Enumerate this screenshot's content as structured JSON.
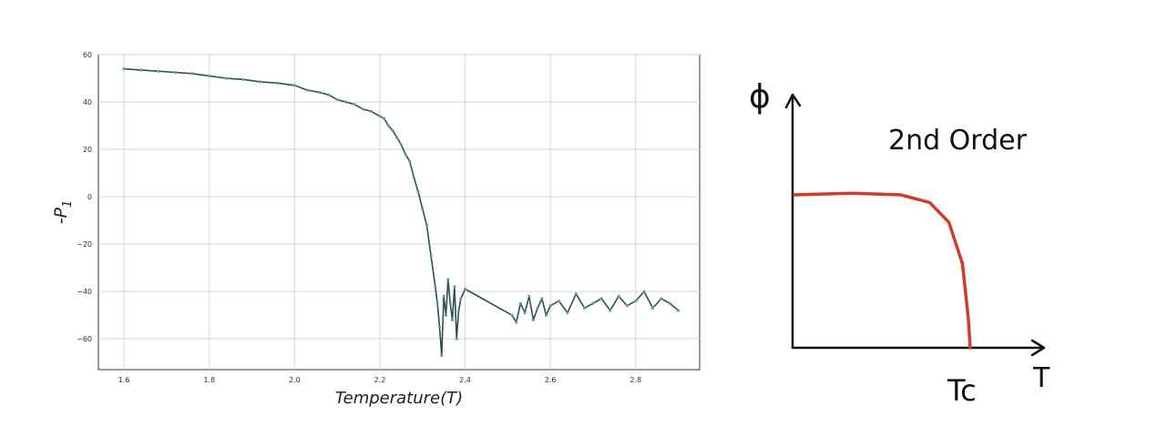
{
  "chart_data": [
    {
      "type": "line",
      "xlabel": "Temperature(T)",
      "ylabel": "-P",
      "ylabel_subscript": "1",
      "xlim": [
        1.54,
        2.95
      ],
      "ylim": [
        -73,
        60
      ],
      "xticks": [
        1.6,
        1.8,
        2.0,
        2.2,
        2.4,
        2.6,
        2.8
      ],
      "xtick_labels": [
        "1.6",
        "1.8",
        "2.0",
        "2.2",
        "2.4",
        "2.6",
        "2.8"
      ],
      "yticks": [
        60,
        40,
        20,
        0,
        -20,
        -40,
        -60
      ],
      "ytick_labels": [
        "60",
        "40",
        "20",
        "0",
        "−20",
        "−40",
        "−60"
      ],
      "grid": true,
      "line_color": "#2f4f4f",
      "marker_color": "#5f9ea0",
      "series": [
        {
          "x": [
            1.6,
            1.64,
            1.68,
            1.72,
            1.76,
            1.8,
            1.84,
            1.88,
            1.92,
            1.96,
            2.0,
            2.03,
            2.06,
            2.08,
            2.1,
            2.12,
            2.14,
            2.16,
            2.18,
            2.2,
            2.21,
            2.22,
            2.23,
            2.24,
            2.25,
            2.26,
            2.27,
            2.28,
            2.29,
            2.3,
            2.31,
            2.32,
            2.33,
            2.335,
            2.34,
            2.345,
            2.35,
            2.355,
            2.36,
            2.365,
            2.37,
            2.375,
            2.38,
            2.385,
            2.39,
            2.4,
            2.51,
            2.52,
            2.53,
            2.54,
            2.55,
            2.56,
            2.57,
            2.58,
            2.59,
            2.6,
            2.62,
            2.64,
            2.66,
            2.68,
            2.7,
            2.72,
            2.74,
            2.76,
            2.78,
            2.8,
            2.82,
            2.84,
            2.86,
            2.88,
            2.9
          ],
          "y": [
            54,
            53.5,
            53,
            52.5,
            52,
            51,
            50,
            49.5,
            48.5,
            48,
            47,
            45,
            44,
            43,
            41,
            40,
            39,
            37,
            36,
            34,
            33,
            30,
            28,
            25,
            22,
            18,
            15,
            8,
            2,
            -5,
            -12,
            -25,
            -38,
            -45,
            -55,
            -67,
            -42,
            -50,
            -35,
            -45,
            -52,
            -38,
            -60,
            -48,
            -43,
            -39,
            -50,
            -53,
            -45,
            -49,
            -42,
            -52,
            -47,
            -43,
            -50,
            -46,
            -44,
            -49,
            -41,
            -47,
            -45,
            -43,
            -48,
            -42,
            -46,
            -44,
            -40,
            -47,
            -43,
            -45,
            -48
          ]
        }
      ]
    },
    {
      "type": "line",
      "xlabel": "T",
      "ylabel": "ϕ",
      "title": "2nd Order",
      "annotations": [
        "Tc"
      ],
      "line_color": "#d23a2a",
      "series": [
        {
          "x": [
            0,
            0.3,
            0.55,
            0.7,
            0.8,
            0.87,
            0.9,
            0.91
          ],
          "y": [
            1,
            1.01,
            1.0,
            0.95,
            0.82,
            0.55,
            0.2,
            0
          ]
        }
      ]
    }
  ]
}
